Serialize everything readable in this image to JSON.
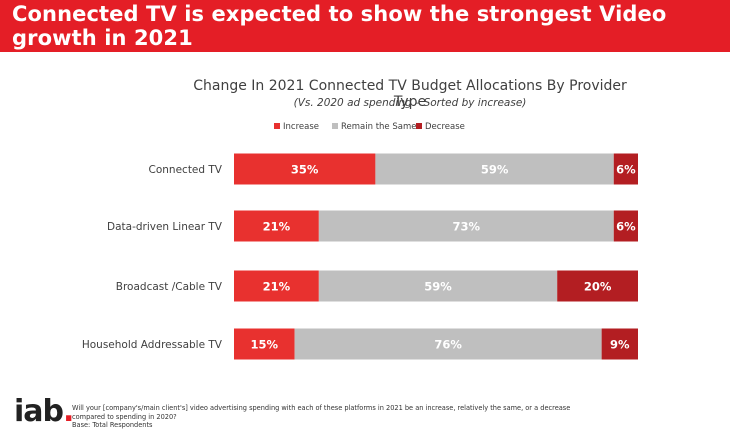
{
  "banner": {
    "title": "Connected TV is expected to show the strongest Video growth in 2021"
  },
  "footer": {
    "logo_text": "iab",
    "logo_dot": ".",
    "question": "Will your [company's/main client's] video advertising spending with each of these platforms in 2021 be an increase, relatively the same, or a decrease compared to spending in 2020?",
    "base": "Base: Total Respondents"
  },
  "chart_data": {
    "type": "bar",
    "orientation": "horizontal",
    "stacked": true,
    "title": "Change In 2021 Connected TV Budget Allocations By Provider Type",
    "subtitle": "(Vs. 2020 ad spending – Sorted by increase)",
    "categories": [
      "Connected TV",
      "Data-driven Linear TV",
      "Broadcast /Cable TV",
      "Household Addressable TV"
    ],
    "series": [
      {
        "name": "Increase",
        "color": "#e8312f",
        "values": [
          35,
          21,
          21,
          15
        ]
      },
      {
        "name": "Remain the Same",
        "color": "#bfbfbf",
        "values": [
          59,
          73,
          59,
          76
        ]
      },
      {
        "name": "Decrease",
        "color": "#b31e22",
        "values": [
          6,
          6,
          20,
          9
        ]
      }
    ],
    "value_suffix": "%",
    "legend_position": "top",
    "grid": false
  }
}
